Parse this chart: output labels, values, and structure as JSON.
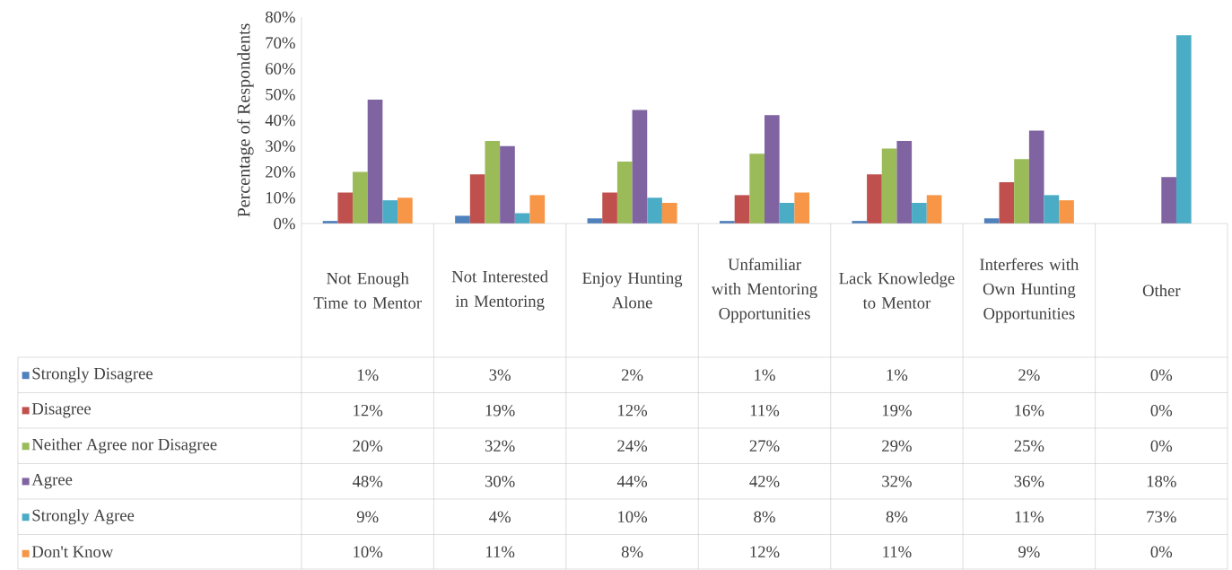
{
  "chart_data": {
    "type": "bar",
    "ylabel": "Percentage of Respondents",
    "categories": [
      "Not Enough Time to Mentor",
      "Not Interested in Mentoring",
      "Enjoy Hunting Alone",
      "Unfamiliar with Mentoring Opportunities",
      "Lack Knowledge to Mentor",
      "Interferes with Own Hunting Opportunities",
      "Other"
    ],
    "series": [
      {
        "name": "Strongly Disagree",
        "color": "#4f81bd",
        "values": [
          1,
          3,
          2,
          1,
          1,
          2,
          0
        ],
        "value_labels": [
          "1%",
          "3%",
          "2%",
          "1%",
          "1%",
          "2%",
          "0%"
        ]
      },
      {
        "name": "Disagree",
        "color": "#c0504d",
        "values": [
          12,
          19,
          12,
          11,
          19,
          16,
          0
        ],
        "value_labels": [
          "12%",
          "19%",
          "12%",
          "11%",
          "19%",
          "16%",
          "0%"
        ]
      },
      {
        "name": "Neither Agree nor Disagree",
        "color": "#9bbb59",
        "values": [
          20,
          32,
          24,
          27,
          29,
          25,
          0
        ],
        "value_labels": [
          "20%",
          "32%",
          "24%",
          "27%",
          "29%",
          "25%",
          "0%"
        ]
      },
      {
        "name": "Agree",
        "color": "#8064a2",
        "values": [
          48,
          30,
          44,
          42,
          32,
          36,
          18
        ],
        "value_labels": [
          "48%",
          "30%",
          "44%",
          "42%",
          "32%",
          "36%",
          "18%"
        ]
      },
      {
        "name": "Strongly Agree",
        "color": "#4bacc6",
        "values": [
          9,
          4,
          10,
          8,
          8,
          11,
          73
        ],
        "value_labels": [
          "9%",
          "4%",
          "10%",
          "8%",
          "8%",
          "11%",
          "73%"
        ]
      },
      {
        "name": "Don't Know",
        "color": "#f79646",
        "values": [
          10,
          11,
          8,
          12,
          11,
          9,
          0
        ],
        "value_labels": [
          "10%",
          "11%",
          "8%",
          "12%",
          "11%",
          "9%",
          "0%"
        ]
      }
    ],
    "ylim": [
      0,
      80
    ],
    "yticks": [
      {
        "value": 0,
        "label": "0%"
      },
      {
        "value": 10,
        "label": "10%"
      },
      {
        "value": 20,
        "label": "20%"
      },
      {
        "value": 30,
        "label": "30%"
      },
      {
        "value": 40,
        "label": "40%"
      },
      {
        "value": 50,
        "label": "50%"
      },
      {
        "value": 60,
        "label": "60%"
      },
      {
        "value": 70,
        "label": "70%"
      },
      {
        "value": 80,
        "label": "80%"
      }
    ],
    "grid": false,
    "legend": "bottom"
  }
}
